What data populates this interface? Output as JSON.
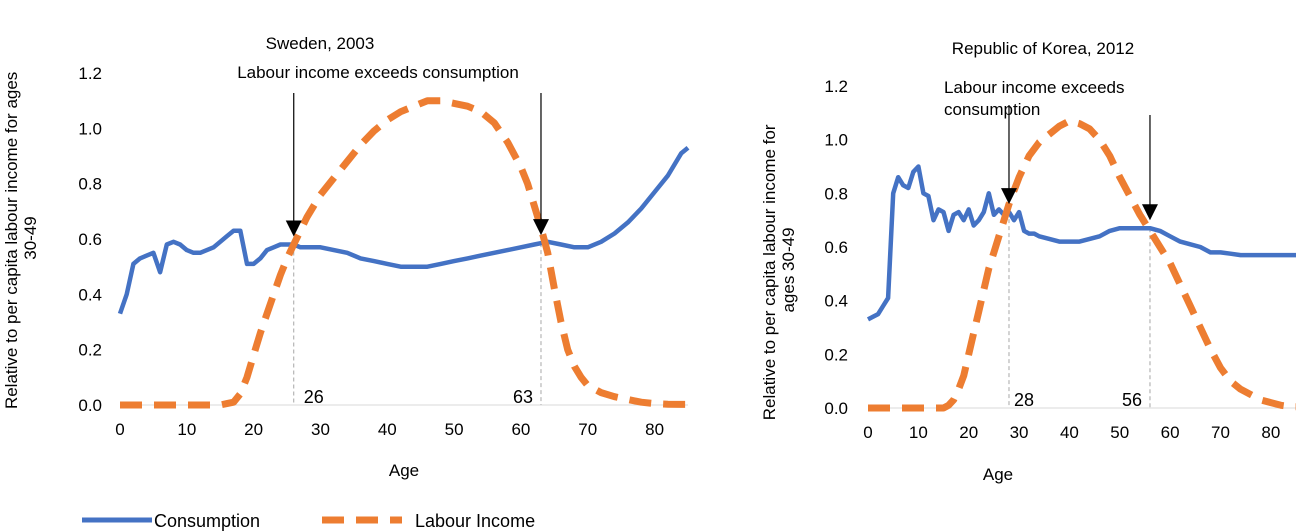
{
  "colors": {
    "consumption": "#4472C4",
    "labour_income": "#ED7D31",
    "guide": "#A6A6A6",
    "arrow": "#000000"
  },
  "legend": {
    "consumption": "Consumption",
    "labour_income": "Labour Income",
    "placement": "bottom-left"
  },
  "chart_data": [
    {
      "type": "line",
      "title": "Sweden, 2003",
      "xlabel": "Age",
      "ylabel": "Relative to per capita labour income for ages 30-49",
      "xlim": [
        0,
        85
      ],
      "ylim": [
        0,
        1.2
      ],
      "xticks": [
        "0",
        "10",
        "20",
        "30",
        "40",
        "50",
        "60",
        "70",
        "80"
      ],
      "yticks": [
        "0.0",
        "0.2",
        "0.4",
        "0.6",
        "0.8",
        "1.0",
        "1.2"
      ],
      "grid": false,
      "annotation": "Labour income exceeds consumption",
      "crossovers": [
        26,
        63
      ],
      "crossover_labels": [
        "26",
        "63"
      ],
      "series": [
        {
          "name": "Consumption",
          "style": "solid",
          "x": [
            0,
            1,
            2,
            3,
            4,
            5,
            6,
            7,
            8,
            9,
            10,
            11,
            12,
            13,
            14,
            15,
            16,
            17,
            18,
            19,
            20,
            21,
            22,
            23,
            24,
            25,
            26,
            27,
            28,
            29,
            30,
            32,
            34,
            36,
            38,
            40,
            42,
            44,
            46,
            48,
            50,
            52,
            54,
            56,
            58,
            60,
            62,
            64,
            66,
            68,
            70,
            72,
            74,
            76,
            78,
            80,
            82,
            84,
            85
          ],
          "y": [
            0.33,
            0.4,
            0.51,
            0.53,
            0.54,
            0.55,
            0.48,
            0.58,
            0.59,
            0.58,
            0.56,
            0.55,
            0.55,
            0.56,
            0.57,
            0.59,
            0.61,
            0.63,
            0.63,
            0.51,
            0.51,
            0.53,
            0.56,
            0.57,
            0.58,
            0.58,
            0.58,
            0.57,
            0.57,
            0.57,
            0.57,
            0.56,
            0.55,
            0.53,
            0.52,
            0.51,
            0.5,
            0.5,
            0.5,
            0.51,
            0.52,
            0.53,
            0.54,
            0.55,
            0.56,
            0.57,
            0.58,
            0.59,
            0.58,
            0.57,
            0.57,
            0.59,
            0.62,
            0.66,
            0.71,
            0.77,
            0.83,
            0.91,
            0.93
          ]
        },
        {
          "name": "Labour Income",
          "style": "dashed",
          "x": [
            0,
            5,
            10,
            15,
            16,
            17,
            18,
            19,
            20,
            21,
            22,
            23,
            24,
            25,
            26,
            27,
            28,
            29,
            30,
            32,
            34,
            36,
            38,
            40,
            42,
            44,
            46,
            48,
            50,
            52,
            54,
            56,
            58,
            60,
            61,
            62,
            63,
            64,
            65,
            66,
            67,
            68,
            69,
            70,
            72,
            74,
            76,
            78,
            80,
            82,
            84,
            85
          ],
          "y": [
            0,
            0,
            0,
            0,
            0.005,
            0.01,
            0.04,
            0.1,
            0.18,
            0.26,
            0.33,
            0.4,
            0.47,
            0.53,
            0.58,
            0.63,
            0.68,
            0.72,
            0.76,
            0.82,
            0.88,
            0.94,
            0.99,
            1.03,
            1.06,
            1.08,
            1.1,
            1.1,
            1.09,
            1.08,
            1.06,
            1.02,
            0.95,
            0.86,
            0.8,
            0.72,
            0.64,
            0.55,
            0.42,
            0.3,
            0.2,
            0.14,
            0.1,
            0.07,
            0.045,
            0.03,
            0.02,
            0.01,
            0.005,
            0.003,
            0.002,
            0.002
          ]
        }
      ]
    },
    {
      "type": "line",
      "title": "Republic of Korea, 2012",
      "xlabel": "Age",
      "ylabel": "Relative to per capita labour income for ages 30-49",
      "xlim": [
        0,
        85
      ],
      "ylim": [
        0,
        1.2
      ],
      "xticks": [
        "0",
        "10",
        "20",
        "30",
        "40",
        "50",
        "60",
        "70",
        "80"
      ],
      "yticks": [
        "0.0",
        "0.2",
        "0.4",
        "0.6",
        "0.8",
        "1.0",
        "1.2"
      ],
      "grid": false,
      "annotation_lines": [
        "Labour income exceeds",
        "consumption"
      ],
      "crossovers": [
        28,
        56
      ],
      "crossover_labels": [
        "28",
        "56"
      ],
      "series": [
        {
          "name": "Consumption",
          "style": "solid",
          "x": [
            0,
            1,
            2,
            3,
            4,
            5,
            6,
            7,
            8,
            9,
            10,
            11,
            12,
            13,
            14,
            15,
            16,
            17,
            18,
            19,
            20,
            21,
            22,
            23,
            24,
            25,
            26,
            27,
            28,
            29,
            30,
            31,
            32,
            33,
            34,
            36,
            38,
            40,
            42,
            44,
            46,
            48,
            50,
            52,
            54,
            56,
            58,
            60,
            62,
            64,
            66,
            68,
            70,
            72,
            74,
            76,
            78,
            80,
            82,
            84,
            85
          ],
          "y": [
            0.33,
            0.34,
            0.35,
            0.38,
            0.41,
            0.8,
            0.86,
            0.83,
            0.82,
            0.88,
            0.9,
            0.8,
            0.79,
            0.7,
            0.74,
            0.73,
            0.66,
            0.72,
            0.73,
            0.7,
            0.74,
            0.68,
            0.7,
            0.73,
            0.8,
            0.72,
            0.74,
            0.72,
            0.73,
            0.7,
            0.73,
            0.66,
            0.65,
            0.65,
            0.64,
            0.63,
            0.62,
            0.62,
            0.62,
            0.63,
            0.64,
            0.66,
            0.67,
            0.67,
            0.67,
            0.67,
            0.66,
            0.64,
            0.62,
            0.61,
            0.6,
            0.58,
            0.58,
            0.575,
            0.57,
            0.57,
            0.57,
            0.57,
            0.57,
            0.57,
            0.57
          ]
        },
        {
          "name": "Labour Income",
          "style": "dashed",
          "x": [
            0,
            5,
            10,
            15,
            16,
            17,
            18,
            19,
            20,
            21,
            22,
            23,
            24,
            25,
            26,
            27,
            28,
            29,
            30,
            32,
            34,
            36,
            38,
            40,
            42,
            44,
            46,
            48,
            50,
            52,
            54,
            56,
            58,
            60,
            62,
            64,
            66,
            68,
            70,
            72,
            74,
            76,
            78,
            80,
            82,
            84,
            85
          ],
          "y": [
            0,
            0,
            0,
            0,
            0.01,
            0.03,
            0.07,
            0.12,
            0.2,
            0.28,
            0.36,
            0.44,
            0.52,
            0.58,
            0.64,
            0.7,
            0.76,
            0.81,
            0.86,
            0.94,
            0.99,
            1.02,
            1.05,
            1.07,
            1.06,
            1.04,
            1.0,
            0.94,
            0.86,
            0.79,
            0.72,
            0.66,
            0.6,
            0.54,
            0.46,
            0.38,
            0.3,
            0.22,
            0.15,
            0.1,
            0.07,
            0.05,
            0.03,
            0.02,
            0.01,
            0.005,
            0.005
          ]
        }
      ]
    }
  ]
}
